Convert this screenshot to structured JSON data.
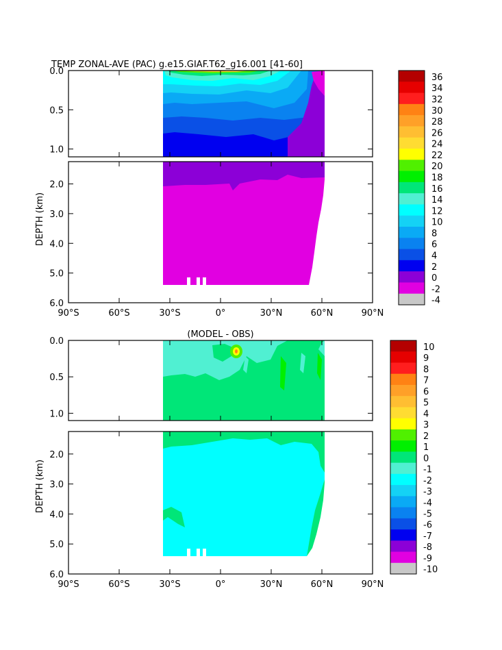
{
  "colors": {
    "scale": [
      "#6e6e6e",
      "#c8c8c8",
      "#e100e1",
      "#8c00d7",
      "#0000f0",
      "#0a50e6",
      "#0a82f0",
      "#0aaaf5",
      "#14d2f5",
      "#00ffff",
      "#50f0d2",
      "#00e678",
      "#00f000",
      "#50f000",
      "#ffff00",
      "#ffdc32",
      "#ffbe32",
      "#ffa028",
      "#ff8214",
      "#ff1e1e",
      "#e60000",
      "#b40000"
    ]
  },
  "chart_data": [
    {
      "type": "heatmap",
      "title": "TEMP ZONAL-AVE (PAC) g.e15.GIAF.T62_g16.001 [41-60]",
      "ylabel": "DEPTH (km)",
      "x_ticks": [
        "90°S",
        "60°S",
        "30°S",
        "0°",
        "30°N",
        "60°N",
        "90°N"
      ],
      "y_ticks_upper": [
        "0.0",
        "0.5",
        "1.0"
      ],
      "y_ticks_lower": [
        "2.0",
        "3.0",
        "4.0",
        "5.0",
        "6.0"
      ],
      "xlim": [
        -90,
        90
      ],
      "ylim_km": [
        0,
        6
      ],
      "colorbar": [
        "36",
        "34",
        "32",
        "30",
        "28",
        "26",
        "24",
        "22",
        "20",
        "18",
        "16",
        "14",
        "12",
        "10",
        "8",
        "6",
        "4",
        "2",
        "0",
        "-2",
        "-4"
      ]
    },
    {
      "type": "heatmap",
      "title": "(MODEL - OBS)",
      "ylabel": "DEPTH (km)",
      "x_ticks": [
        "90°S",
        "60°S",
        "30°S",
        "0°",
        "30°N",
        "60°N",
        "90°N"
      ],
      "y_ticks_upper": [
        "0.0",
        "0.5",
        "1.0"
      ],
      "y_ticks_lower": [
        "2.0",
        "3.0",
        "4.0",
        "5.0",
        "6.0"
      ],
      "xlim": [
        -90,
        90
      ],
      "ylim_km": [
        0,
        6
      ],
      "colorbar": [
        "10",
        "9",
        "8",
        "7",
        "6",
        "5",
        "4",
        "3",
        "2",
        "1",
        "0",
        "-1",
        "-2",
        "-3",
        "-4",
        "-5",
        "-6",
        "-7",
        "-8",
        "-9",
        "-10"
      ]
    }
  ]
}
